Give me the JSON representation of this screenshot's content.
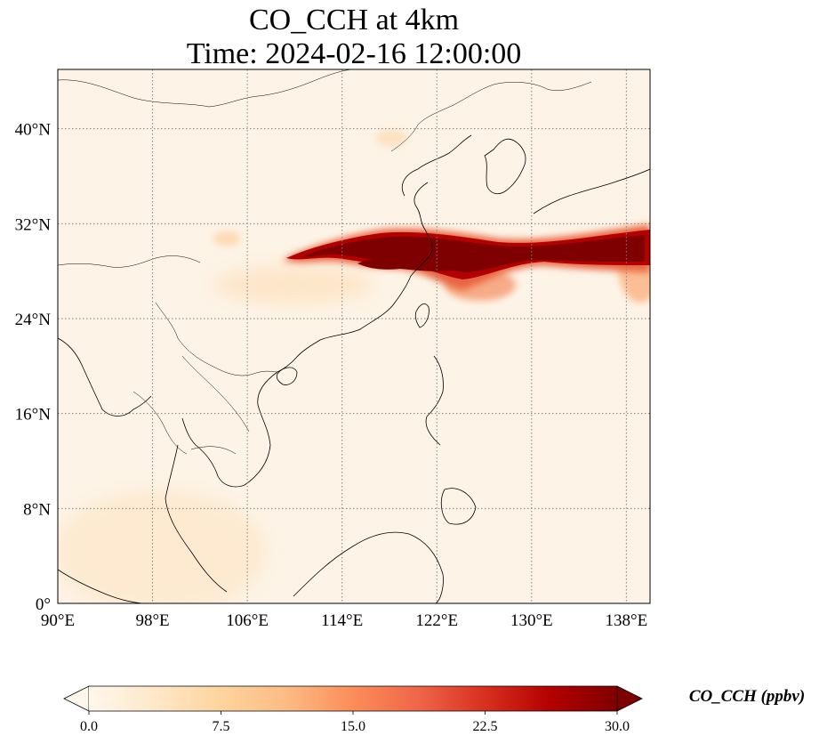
{
  "figure": {
    "title_line1": "CO_CCH at 4km",
    "title_line2": "Time: 2024-02-16 12:00:00"
  },
  "map": {
    "lon_range": [
      90,
      140
    ],
    "lat_range": [
      0,
      45
    ],
    "lon_ticks": [
      {
        "value": 90,
        "label": "90°E"
      },
      {
        "value": 98,
        "label": "98°E"
      },
      {
        "value": 106,
        "label": "106°E"
      },
      {
        "value": 114,
        "label": "114°E"
      },
      {
        "value": 122,
        "label": "122°E"
      },
      {
        "value": 130,
        "label": "130°E"
      },
      {
        "value": 138,
        "label": "138°E"
      }
    ],
    "lat_ticks": [
      {
        "value": 0,
        "label": "0°"
      },
      {
        "value": 8,
        "label": "8°N"
      },
      {
        "value": 16,
        "label": "16°N"
      },
      {
        "value": 24,
        "label": "24°N"
      },
      {
        "value": 32,
        "label": "32°N"
      },
      {
        "value": 40,
        "label": "40°N"
      }
    ],
    "gridlines": true,
    "gridline_style": "dotted",
    "background_color": "#fdf4e7",
    "plume_color": "#7f0000"
  },
  "colorbar": {
    "label": "CO_CCH (ppbv)",
    "min": 0.0,
    "max": 30.0,
    "extend": "both",
    "ticks": [
      {
        "value": 0.0,
        "label": "0.0"
      },
      {
        "value": 7.5,
        "label": "7.5"
      },
      {
        "value": 15.0,
        "label": "15.0"
      },
      {
        "value": 22.5,
        "label": "22.5"
      },
      {
        "value": 30.0,
        "label": "30.0"
      }
    ],
    "colors": [
      "#fff7ec",
      "#fee8c8",
      "#fdd49e",
      "#fdbb84",
      "#fc8d59",
      "#ef6548",
      "#d7301f",
      "#b30000",
      "#7f0000"
    ]
  }
}
